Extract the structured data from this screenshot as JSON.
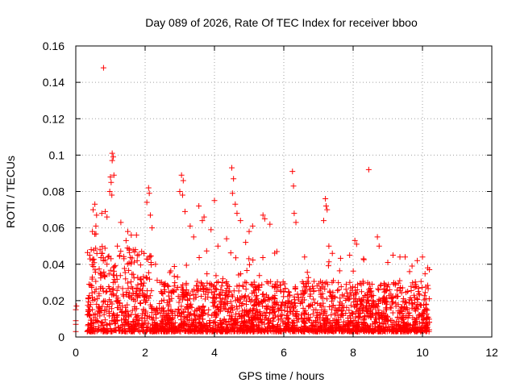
{
  "chart_data": {
    "type": "scatter",
    "title": "Day 089 of 2026, Rate Of TEC Index for receiver bboo",
    "xlabel": "GPS time / hours",
    "ylabel": "ROTI / TECUs",
    "xlim": [
      0,
      12
    ],
    "ylim": [
      0,
      0.16
    ],
    "x_ticks": [
      0,
      2,
      4,
      6,
      8,
      10,
      12
    ],
    "x_tick_labels": [
      "0",
      "2",
      "4",
      "6",
      "8",
      "10",
      "12"
    ],
    "y_ticks": [
      0,
      0.02,
      0.04,
      0.06,
      0.08,
      0.1,
      0.12,
      0.14,
      0.16
    ],
    "y_tick_labels": [
      "0",
      "0.02",
      "0.04",
      "0.06",
      "0.08",
      "0.1",
      "0.12",
      "0.14",
      "0.16"
    ],
    "grid": true,
    "marker": "+",
    "color": "#ff0000",
    "series": [
      {
        "name": "ROTI",
        "points": [
          [
            0.0,
            0.003
          ],
          [
            0.0,
            0.007
          ],
          [
            0.0,
            0.009
          ],
          [
            0.0,
            0.015
          ],
          [
            0.02,
            0.017
          ],
          [
            0.8,
            0.148
          ],
          [
            1.05,
            0.101
          ],
          [
            1.08,
            0.099
          ],
          [
            1.05,
            0.097
          ],
          [
            1.1,
            0.089
          ],
          [
            1.0,
            0.088
          ],
          [
            1.02,
            0.085
          ],
          [
            0.98,
            0.08
          ],
          [
            1.04,
            0.078
          ],
          [
            0.55,
            0.073
          ],
          [
            0.5,
            0.07
          ],
          [
            0.6,
            0.067
          ],
          [
            0.58,
            0.061
          ],
          [
            0.48,
            0.058
          ],
          [
            0.85,
            0.069
          ],
          [
            0.75,
            0.068
          ],
          [
            0.9,
            0.066
          ],
          [
            1.3,
            0.063
          ],
          [
            1.5,
            0.058
          ],
          [
            1.6,
            0.056
          ],
          [
            1.75,
            0.056
          ],
          [
            1.45,
            0.053
          ],
          [
            2.1,
            0.082
          ],
          [
            2.12,
            0.079
          ],
          [
            2.05,
            0.074
          ],
          [
            2.15,
            0.067
          ],
          [
            2.2,
            0.06
          ],
          [
            3.05,
            0.089
          ],
          [
            3.1,
            0.086
          ],
          [
            3.0,
            0.08
          ],
          [
            3.08,
            0.078
          ],
          [
            3.15,
            0.069
          ],
          [
            3.3,
            0.061
          ],
          [
            3.55,
            0.072
          ],
          [
            3.7,
            0.066
          ],
          [
            3.65,
            0.064
          ],
          [
            3.9,
            0.059
          ],
          [
            4.0,
            0.075
          ],
          [
            4.35,
            0.054
          ],
          [
            4.5,
            0.093
          ],
          [
            4.55,
            0.087
          ],
          [
            4.52,
            0.079
          ],
          [
            4.6,
            0.073
          ],
          [
            4.65,
            0.068
          ],
          [
            4.75,
            0.064
          ],
          [
            5.0,
            0.058
          ],
          [
            5.1,
            0.061
          ],
          [
            5.4,
            0.067
          ],
          [
            5.45,
            0.065
          ],
          [
            5.6,
            0.062
          ],
          [
            6.25,
            0.091
          ],
          [
            6.28,
            0.083
          ],
          [
            6.3,
            0.068
          ],
          [
            6.35,
            0.063
          ],
          [
            7.2,
            0.076
          ],
          [
            7.22,
            0.072
          ],
          [
            7.25,
            0.07
          ],
          [
            7.15,
            0.064
          ],
          [
            7.3,
            0.05
          ],
          [
            8.05,
            0.053
          ],
          [
            8.1,
            0.051
          ],
          [
            8.45,
            0.092
          ],
          [
            8.7,
            0.055
          ],
          [
            8.75,
            0.05
          ],
          [
            9.15,
            0.045
          ],
          [
            9.35,
            0.044
          ],
          [
            9.5,
            0.044
          ],
          [
            9.85,
            0.042
          ],
          [
            10.0,
            0.044
          ],
          [
            10.15,
            0.038
          ],
          [
            10.2,
            0.037
          ],
          [
            0.4,
            0.045
          ],
          [
            0.7,
            0.048
          ],
          [
            1.2,
            0.05
          ],
          [
            1.9,
            0.047
          ],
          [
            2.3,
            0.04
          ],
          [
            3.4,
            0.055
          ],
          [
            4.1,
            0.05
          ],
          [
            4.9,
            0.052
          ],
          [
            5.8,
            0.047
          ],
          [
            6.6,
            0.044
          ],
          [
            7.4,
            0.046
          ],
          [
            7.9,
            0.045
          ],
          [
            8.3,
            0.043
          ],
          [
            9.0,
            0.041
          ],
          [
            9.7,
            0.039
          ]
        ]
      }
    ]
  }
}
